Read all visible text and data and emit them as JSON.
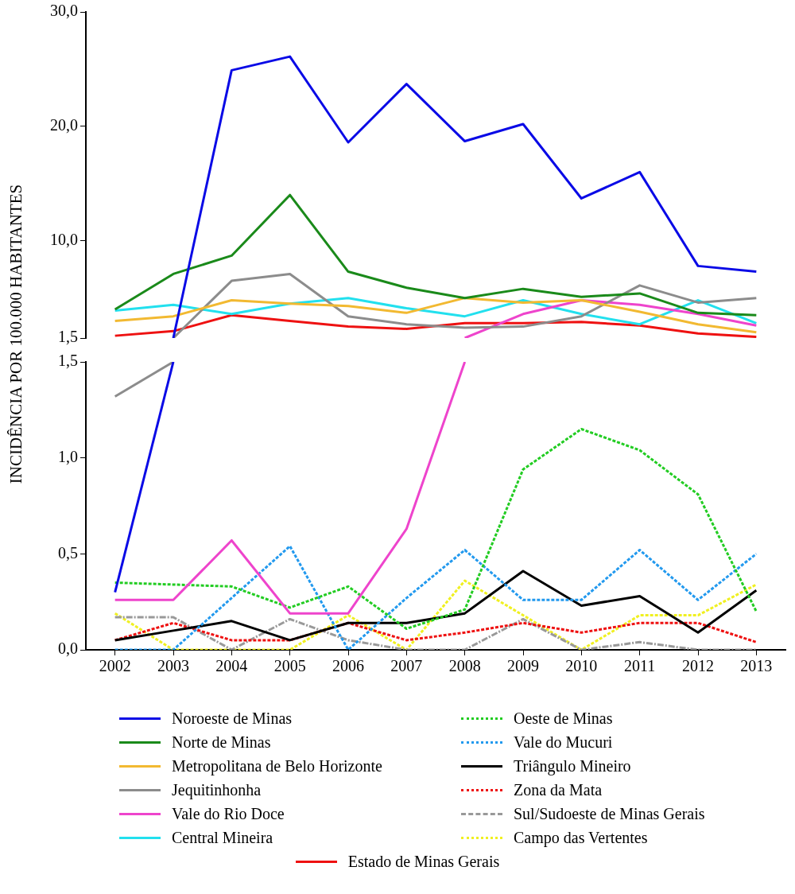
{
  "chart_data": [
    {
      "type": "line",
      "ylabel": "INCIDÊNCIA POR 100.000 HABITANTES",
      "categories": [
        "2002",
        "2003",
        "2004",
        "2005",
        "2006",
        "2007",
        "2008",
        "2009",
        "2010",
        "2011",
        "2012",
        "2013"
      ],
      "ylim": [
        1.5,
        30
      ],
      "yticks": [
        {
          "value": 1.5,
          "label": "1,5"
        },
        {
          "value": 10,
          "label": "10,0"
        },
        {
          "value": 20,
          "label": "20,0"
        },
        {
          "value": 30,
          "label": "30,0"
        }
      ],
      "tick_labels": "y",
      "grid": false,
      "legend": false,
      "marker": "none",
      "series": [
        {
          "color": "#0a0ae6",
          "line_style": "solid",
          "values": [
            null,
            1.5,
            24.9,
            26.1,
            18.6,
            23.7,
            18.7,
            20.2,
            13.7,
            16.0,
            7.8,
            7.3
          ]
        },
        {
          "color": "#1a8a1a",
          "line_style": "solid",
          "values": [
            4.0,
            7.1,
            8.7,
            14.0,
            7.3,
            5.9,
            5.0,
            5.8,
            5.1,
            5.4,
            3.7,
            3.5
          ]
        },
        {
          "color": "#f2b931",
          "line_style": "solid",
          "values": [
            3.0,
            3.4,
            4.8,
            4.5,
            4.3,
            3.7,
            5.0,
            4.6,
            4.8,
            3.8,
            2.7,
            2.0
          ]
        },
        {
          "color": "#8c8c8c",
          "line_style": "solid",
          "values": [
            null,
            1.5,
            6.5,
            7.1,
            3.4,
            2.7,
            2.4,
            2.5,
            3.4,
            6.1,
            4.6,
            5.0
          ]
        },
        {
          "color": "#ee44cc",
          "line_style": "solid",
          "values": [
            null,
            null,
            null,
            null,
            null,
            null,
            1.5,
            3.6,
            4.8,
            4.4,
            3.6,
            2.6
          ]
        },
        {
          "color": "#22e0ee",
          "line_style": "solid",
          "values": [
            3.9,
            4.4,
            3.6,
            4.5,
            5.0,
            4.1,
            3.4,
            4.8,
            3.6,
            2.7,
            4.8,
            2.8
          ]
        },
        {
          "color": "#ee1111",
          "line_style": "solid",
          "values": [
            1.7,
            2.1,
            3.5,
            3.0,
            2.5,
            2.3,
            2.8,
            2.8,
            2.9,
            2.6,
            1.9,
            1.6
          ]
        }
      ]
    },
    {
      "type": "line",
      "categories": [
        "2002",
        "2003",
        "2004",
        "2005",
        "2006",
        "2007",
        "2008",
        "2009",
        "2010",
        "2011",
        "2012",
        "2013"
      ],
      "ylim": [
        0,
        1.5
      ],
      "yticks": [
        {
          "value": 0,
          "label": "0,0"
        },
        {
          "value": 0.5,
          "label": "0,5"
        },
        {
          "value": 1,
          "label": "1,0"
        },
        {
          "value": 1.5,
          "label": "1,5"
        }
      ],
      "grid": false,
      "legend": "bottom",
      "marker": "none",
      "series": [
        {
          "name": "Noroeste de Minas",
          "color": "#0a0ae6",
          "line_style": "solid",
          "values": [
            0.3,
            1.5,
            null,
            null,
            null,
            null,
            null,
            null,
            null,
            null,
            null,
            null
          ]
        },
        {
          "name": "Norte de Minas",
          "color": "#1a8a1a",
          "line_style": "solid",
          "values": [
            null,
            null,
            null,
            null,
            null,
            null,
            null,
            null,
            null,
            null,
            null,
            null
          ]
        },
        {
          "name": "Metropolitana de Belo Horizonte",
          "color": "#f2b931",
          "line_style": "solid",
          "values": [
            null,
            null,
            null,
            null,
            null,
            null,
            null,
            null,
            null,
            null,
            null,
            null
          ]
        },
        {
          "name": "Jequitinhonha",
          "color": "#8c8c8c",
          "line_style": "solid",
          "values": [
            1.32,
            1.5,
            null,
            null,
            null,
            null,
            null,
            null,
            null,
            null,
            null,
            null
          ]
        },
        {
          "name": "Vale do Rio Doce",
          "color": "#ee44cc",
          "line_style": "solid",
          "values": [
            0.26,
            0.26,
            0.57,
            0.19,
            0.19,
            0.63,
            1.5,
            null,
            null,
            null,
            null,
            null
          ]
        },
        {
          "name": "Central Mineira",
          "color": "#22e0ee",
          "line_style": "solid",
          "values": [
            null,
            null,
            null,
            null,
            null,
            null,
            null,
            null,
            null,
            null,
            null,
            null
          ]
        },
        {
          "name": "Oeste de Minas",
          "color": "#22cc22",
          "line_style": "dotted",
          "values": [
            0.35,
            0.34,
            0.33,
            0.22,
            0.33,
            0.11,
            0.21,
            0.94,
            1.15,
            1.04,
            0.81,
            0.2
          ]
        },
        {
          "name": "Vale do Mucuri",
          "color": "#2299ee",
          "line_style": "dotted",
          "values": [
            0,
            0,
            0.27,
            0.54,
            0,
            0.27,
            0.52,
            0.26,
            0.26,
            0.52,
            0.26,
            0.5
          ]
        },
        {
          "name": "Triângulo Mineiro",
          "color": "#000000",
          "line_style": "solid",
          "values": [
            0.05,
            0.1,
            0.15,
            0.05,
            0.14,
            0.14,
            0.19,
            0.41,
            0.23,
            0.28,
            0.09,
            0.31
          ]
        },
        {
          "name": "Zona da Mata",
          "color": "#ee1111",
          "line_style": "dotted",
          "values": [
            0.05,
            0.14,
            0.05,
            0.05,
            0.14,
            0.05,
            0.09,
            0.14,
            0.09,
            0.14,
            0.14,
            0.04
          ]
        },
        {
          "name": "Sul/Sudoeste de Minas Gerais",
          "color": "#999999",
          "line_style": "dashdot",
          "values": [
            0.17,
            0.17,
            0,
            0.16,
            0.05,
            0,
            0,
            0.16,
            0,
            0.04,
            0,
            0
          ]
        },
        {
          "name": "Campo das Vertentes",
          "color": "#f0f020",
          "line_style": "dotted",
          "values": [
            0.19,
            0,
            0,
            0,
            0.18,
            0,
            0.36,
            0.18,
            0,
            0.18,
            0.18,
            0.34
          ]
        },
        {
          "name": "Estado de Minas Gerais",
          "color": "#ee1111",
          "line_style": "solid",
          "values": [
            null,
            null,
            null,
            null,
            null,
            null,
            null,
            null,
            null,
            null,
            null,
            null
          ]
        }
      ]
    }
  ]
}
